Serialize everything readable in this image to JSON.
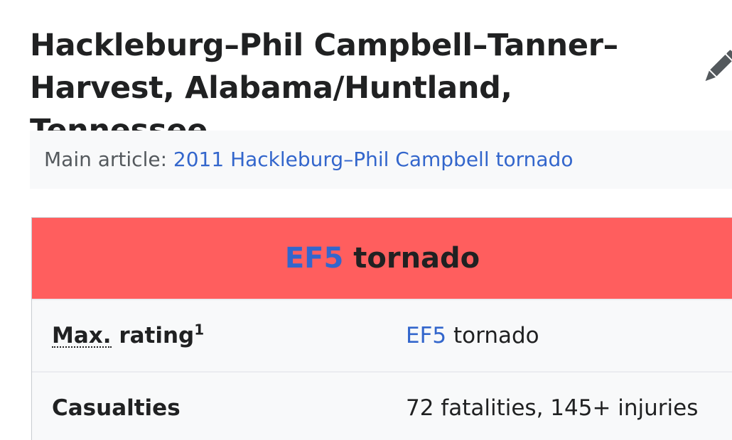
{
  "section": {
    "heading": "Hackleburg–Phil Campbell–Tanner–Harvest, Alabama/Huntland, Tennessee"
  },
  "edit": {
    "icon": "pencil-icon"
  },
  "hatnote": {
    "prefix": "Main article: ",
    "link_text": "2011 Hackleburg–Phil Campbell tornado"
  },
  "infobox": {
    "header_color": "#ff5e5e",
    "header": {
      "link_text": "EF5",
      "rest": " tornado"
    },
    "rows": [
      {
        "label_abbr": "Max.",
        "label_rest": " rating",
        "footnote": "1",
        "value_link": "EF5",
        "value_rest": " tornado"
      },
      {
        "label": "Casualties",
        "value": "72 fatalities, 145+ injuries"
      }
    ]
  }
}
